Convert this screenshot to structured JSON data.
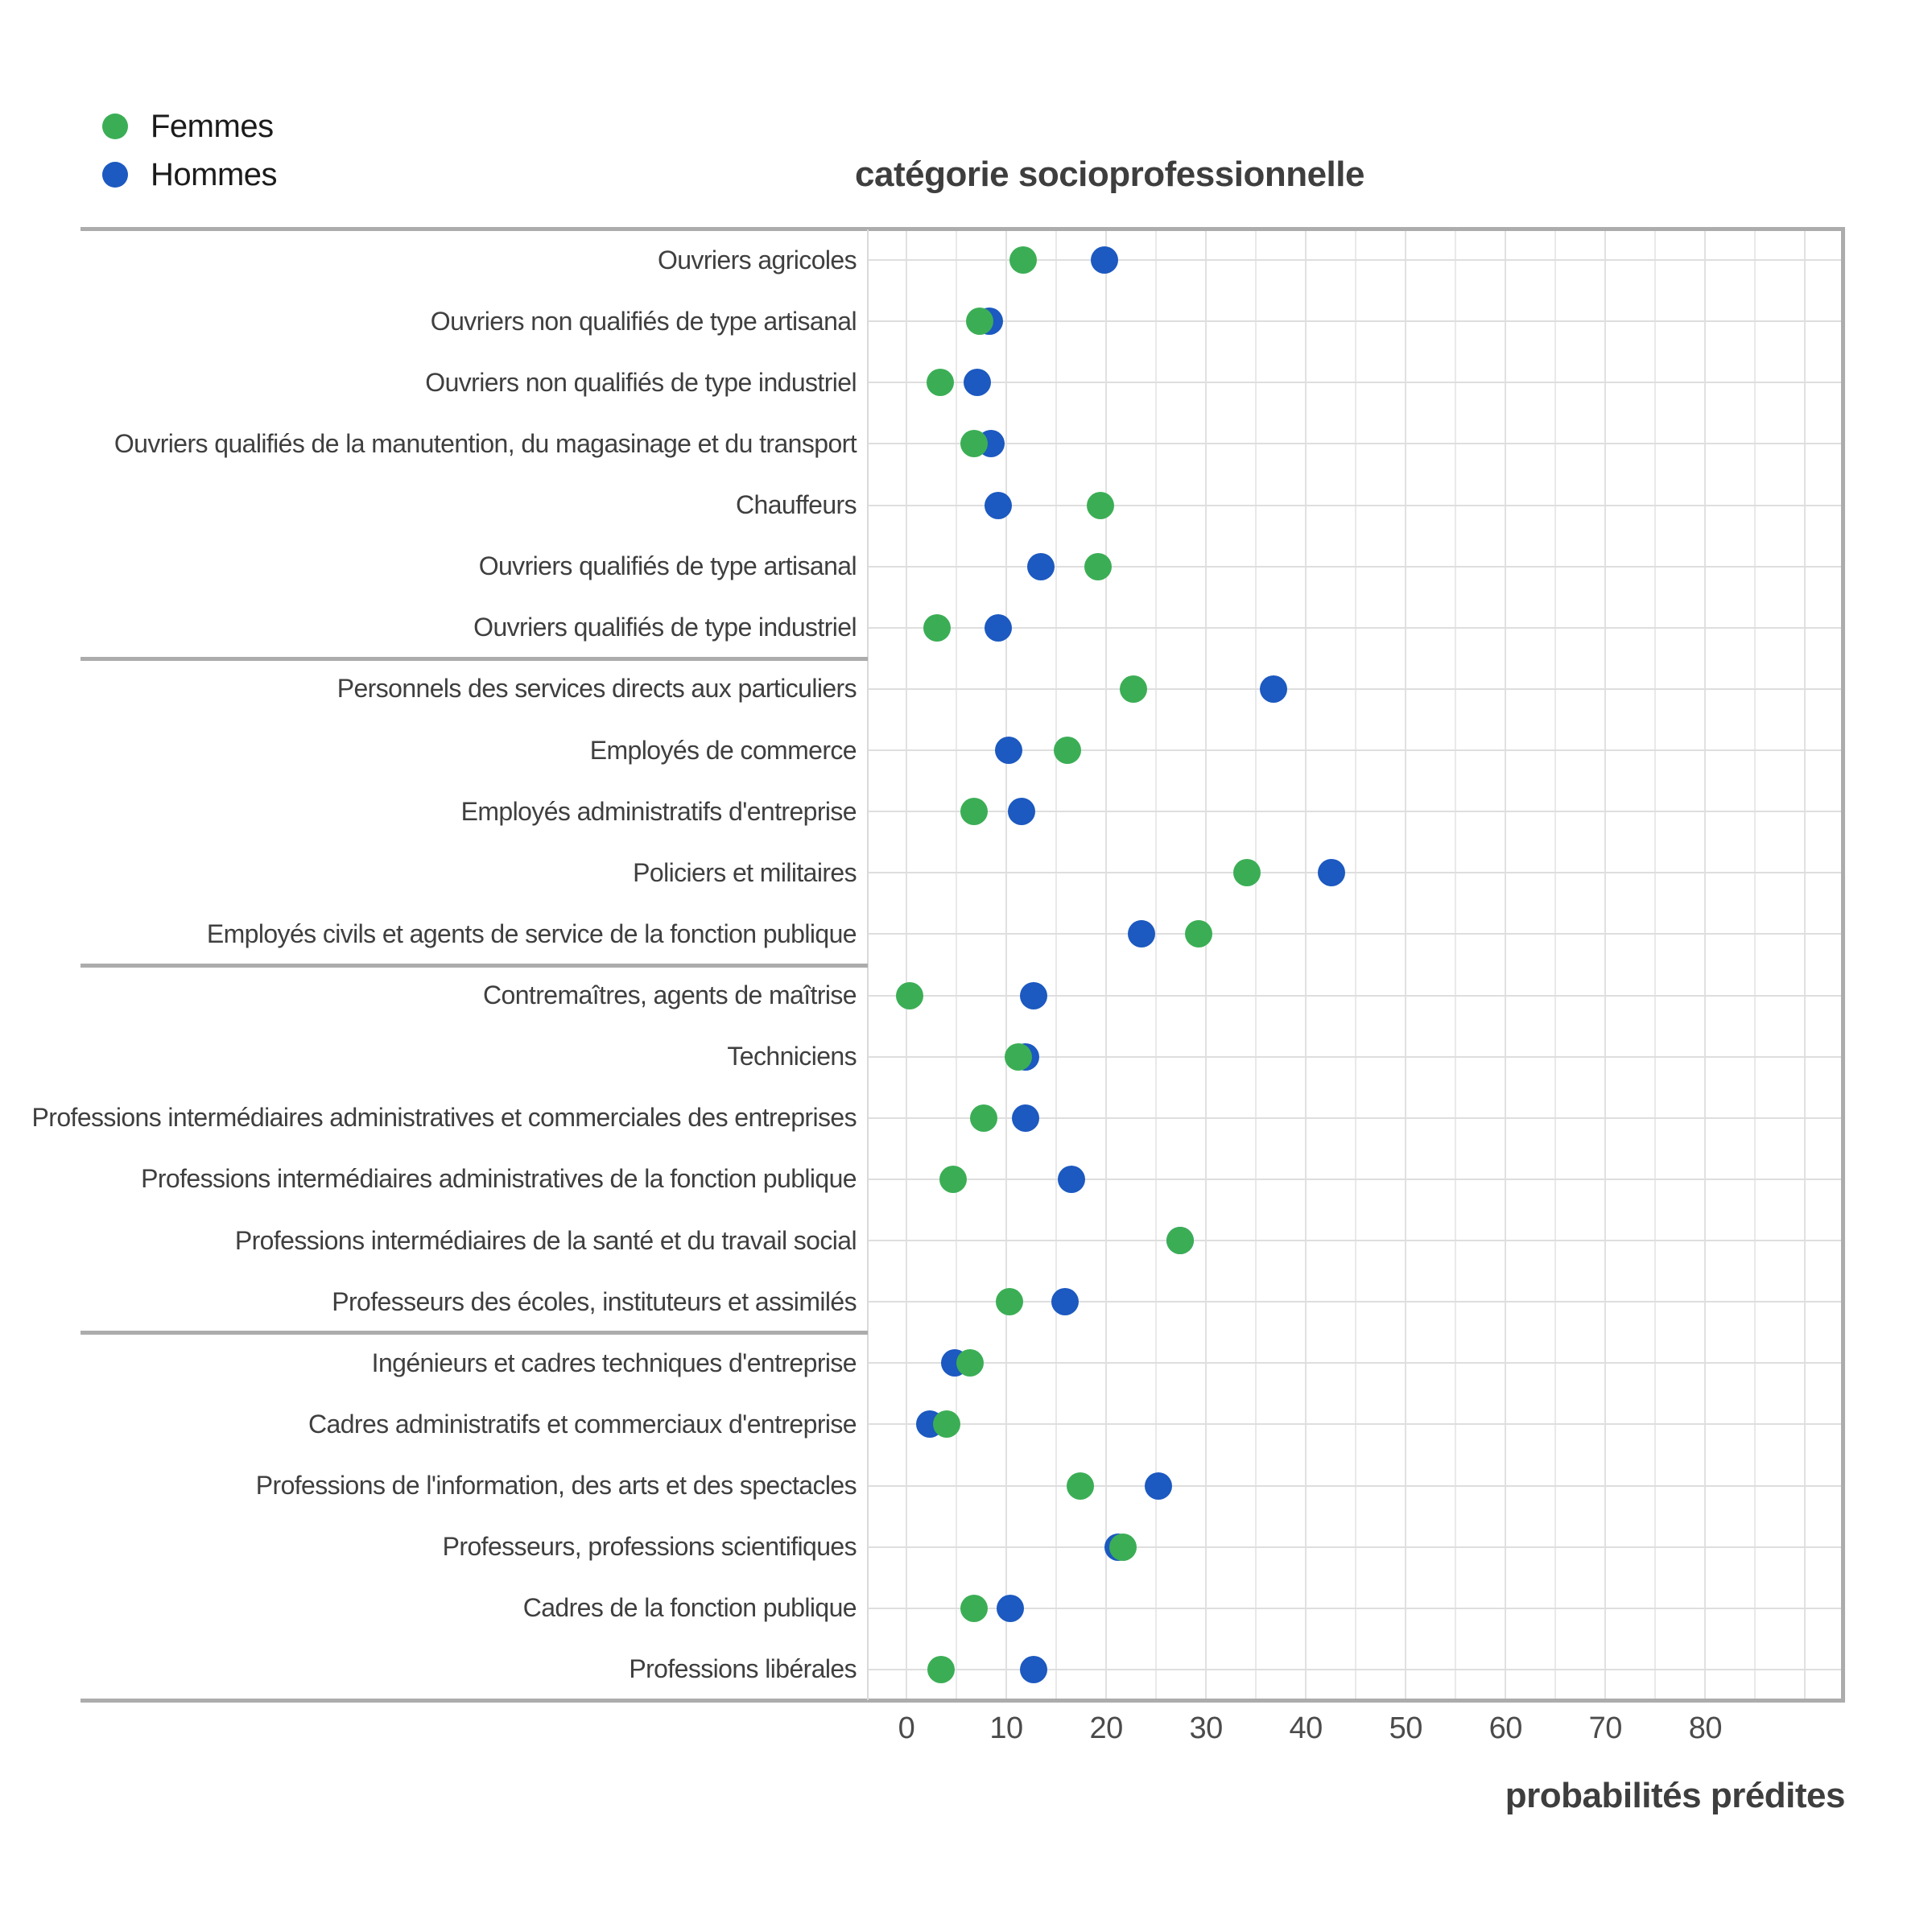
{
  "title": "catégorie socioprofessionnelle",
  "legend": {
    "items": [
      {
        "label": "Femmes",
        "color": "#3bae55"
      },
      {
        "label": "Hommes",
        "color": "#1c59c0"
      }
    ]
  },
  "axis": {
    "xlabel": "probabilités prédites",
    "ticks": [
      0,
      10,
      20,
      30,
      40,
      50,
      60,
      70,
      80
    ]
  },
  "chart_data": {
    "type": "scatter",
    "subtype": "dot-plot",
    "title": "catégorie socioprofessionnelle",
    "xlabel": "probabilités prédites",
    "ylabel": "",
    "xlim": [
      -3.87,
      94.0
    ],
    "grid": true,
    "minor_grid_step": 5,
    "tick_step": 10,
    "legend_position": "top-left",
    "categories": [
      "Ouvriers agricoles",
      "Ouvriers non qualifiés de type artisanal",
      "Ouvriers non qualifiés de type industriel",
      "Ouvriers qualifiés de la manutention, du magasinage et du transport",
      "Chauffeurs",
      "Ouvriers qualifiés de type artisanal",
      "Ouvriers qualifiés de type industriel",
      "Personnels des services directs aux particuliers",
      "Employés de commerce",
      "Employés administratifs d'entreprise",
      "Policiers et militaires",
      "Employés civils et agents de service de la fonction publique",
      "Contremaîtres, agents de maîtrise",
      "Techniciens",
      "Professions intermédiaires administratives et commerciales des entreprises",
      "Professions intermédiaires administratives de la fonction publique",
      "Professions intermédiaires de la santé et du travail social",
      "Professeurs des écoles, instituteurs et assimilés",
      "Ingénieurs et cadres techniques d'entreprise",
      "Cadres administratifs et commerciaux d'entreprise",
      "Professions de l'information, des arts et des spectacles",
      "Professeurs, professions scientifiques",
      "Cadres de la fonction publique",
      "Professions libérales"
    ],
    "group_boundaries_after": [
      7,
      12,
      18
    ],
    "series": [
      {
        "name": "Femmes",
        "color": "#3bae55",
        "values": [
          11.7,
          7.3,
          3.4,
          6.8,
          19.4,
          19.2,
          3.1,
          22.7,
          16.1,
          6.8,
          34.1,
          29.3,
          0.3,
          11.2,
          7.7,
          4.7,
          27.4,
          10.3,
          6.4,
          4.0,
          17.4,
          21.7,
          6.8,
          3.5
        ]
      },
      {
        "name": "Hommes",
        "color": "#1c59c0",
        "values": [
          19.8,
          8.3,
          7.1,
          8.5,
          9.2,
          13.5,
          9.2,
          36.8,
          10.2,
          11.5,
          42.6,
          23.5,
          12.7,
          11.9,
          11.9,
          16.5,
          27.4,
          15.9,
          4.8,
          2.3,
          25.2,
          21.2,
          10.4,
          12.7
        ]
      }
    ]
  }
}
